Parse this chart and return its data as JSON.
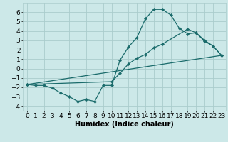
{
  "background_color": "#cce8e8",
  "grid_color": "#aacccc",
  "line_color": "#1a6b6b",
  "marker_color": "#1a6b6b",
  "xlabel": "Humidex (Indice chaleur)",
  "ylim": [
    -4.5,
    7.0
  ],
  "xlim": [
    -0.5,
    23.5
  ],
  "yticks": [
    -4,
    -3,
    -2,
    -1,
    0,
    1,
    2,
    3,
    4,
    5,
    6
  ],
  "xticks": [
    0,
    1,
    2,
    3,
    4,
    5,
    6,
    7,
    8,
    9,
    10,
    11,
    12,
    13,
    14,
    15,
    16,
    17,
    18,
    19,
    20,
    21,
    22,
    23
  ],
  "line1_x": [
    0,
    1,
    2,
    3,
    4,
    5,
    6,
    7,
    8,
    9,
    10,
    11,
    12,
    13,
    14,
    15,
    16,
    17,
    18,
    19,
    20,
    21,
    22,
    23
  ],
  "line1_y": [
    -1.7,
    -1.8,
    -1.8,
    -2.1,
    -2.6,
    -3.0,
    -3.5,
    -3.3,
    -3.5,
    -1.8,
    -1.8,
    0.9,
    2.3,
    3.3,
    5.3,
    6.3,
    6.3,
    5.7,
    4.3,
    3.7,
    3.8,
    2.9,
    2.4,
    1.4
  ],
  "line2_x": [
    0,
    23
  ],
  "line2_y": [
    -1.7,
    1.4
  ],
  "line3_x": [
    0,
    10,
    11,
    12,
    13,
    14,
    15,
    16,
    19,
    20,
    21,
    22,
    23
  ],
  "line3_y": [
    -1.7,
    -1.4,
    -0.5,
    0.5,
    1.1,
    1.5,
    2.2,
    2.6,
    4.2,
    3.8,
    3.0,
    2.4,
    1.4
  ],
  "xlabel_fontsize": 7,
  "tick_fontsize": 6.5
}
